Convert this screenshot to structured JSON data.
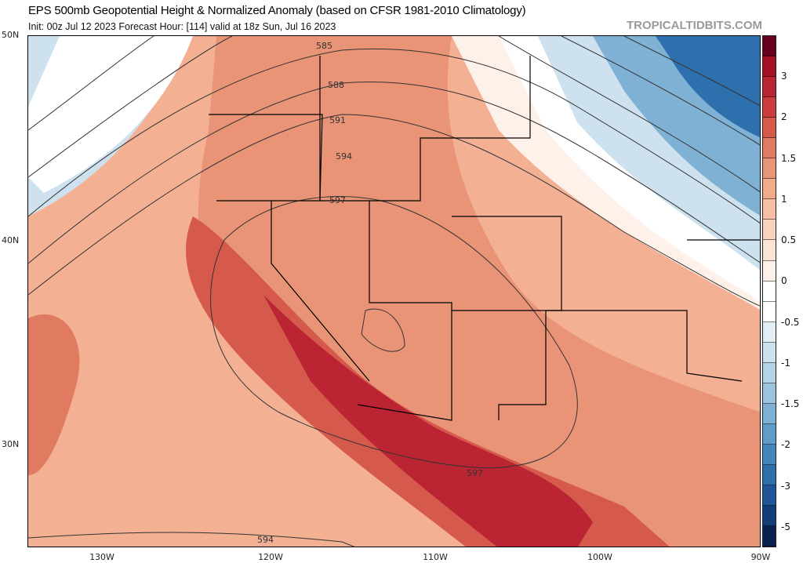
{
  "header": {
    "title": "EPS 500mb Geopotential Height & Normalized Anomaly (based on CFSR 1981-2010 Climatology)",
    "subtitle": "Init: 00z Jul 12 2023   Forecast Hour: [114]   valid at 18z Sun, Jul 16 2023",
    "watermark": "TROPICALTIDBITS.COM"
  },
  "axes": {
    "lat": [
      "50N",
      "40N",
      "30N"
    ],
    "lon": [
      "130W",
      "120W",
      "110W",
      "100W",
      "90W"
    ]
  },
  "contours": [
    "585",
    "588",
    "591",
    "594",
    "597",
    "597",
    "594"
  ],
  "colorbar": {
    "labels": [
      "3",
      "2",
      "1.5",
      "1",
      "0.5",
      "0",
      "-0.5",
      "-1",
      "-1.5",
      "-2",
      "-3",
      "-5"
    ],
    "colors": [
      "#67001f",
      "#a50f26",
      "#bb2433",
      "#cc3c3c",
      "#d65a4c",
      "#e07b61",
      "#e99477",
      "#f2aa8a",
      "#f6bea3",
      "#f9d2bd",
      "#fbe3d5",
      "#fdf1ea",
      "#ffffff",
      "#ffffff",
      "#e2eef5",
      "#cde2ee",
      "#b5d3e6",
      "#9cc4de",
      "#7fb1d4",
      "#5f9cc9",
      "#4186bd",
      "#2e6fae",
      "#1f5699",
      "#123d78",
      "#08214f"
    ]
  }
}
